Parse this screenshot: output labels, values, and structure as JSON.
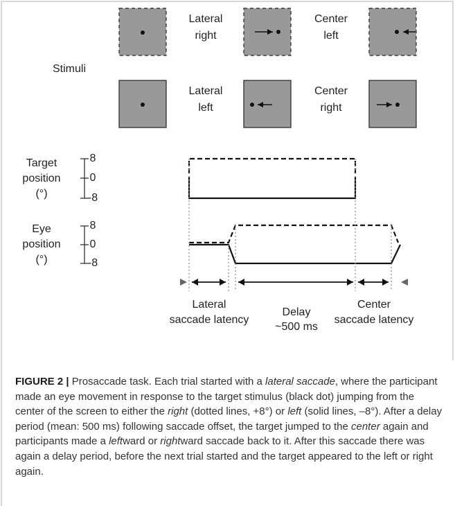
{
  "figure": {
    "stimuli_label": "Stimuli",
    "stimuli": [
      {
        "label_line1": "Lateral",
        "label_line2": "right"
      },
      {
        "label_line1": "Center",
        "label_line2": "left"
      },
      {
        "label_line1": "Lateral",
        "label_line2": "left"
      },
      {
        "label_line1": "Center",
        "label_line2": "right"
      }
    ],
    "target_axis": {
      "label": [
        "Target",
        "position",
        "(°)"
      ],
      "ticks": [
        "8",
        "0",
        "-8"
      ]
    },
    "eye_axis": {
      "label": [
        "Eye",
        "position",
        "(°)"
      ],
      "ticks": [
        "8",
        "0",
        "-8"
      ]
    },
    "intervals": [
      {
        "line1": "Lateral",
        "line2": "saccade latency"
      },
      {
        "line1": "Delay",
        "line2": "~500 ms"
      },
      {
        "line1": "Center",
        "line2": "saccade latency"
      }
    ]
  },
  "caption": {
    "label": "FIGURE 2 |",
    "segments": [
      " Prosaccade task. Each trial started with a ",
      "lateral saccade",
      ", where the participant made an eye movement in response to the target stimulus (black dot) jumping from the center of the screen to either the ",
      "right",
      " (dotted lines, +8°) or ",
      "left",
      " (solid lines, –8°). After a delay period (mean: 500 ms) following saccade offset, the target jumped to the ",
      "center",
      " again and participants made a ",
      "left",
      "ward or ",
      "right",
      "ward saccade back to it. After this saccade there was again a delay period, before the next trial started and the target appeared to the left or right again."
    ]
  }
}
